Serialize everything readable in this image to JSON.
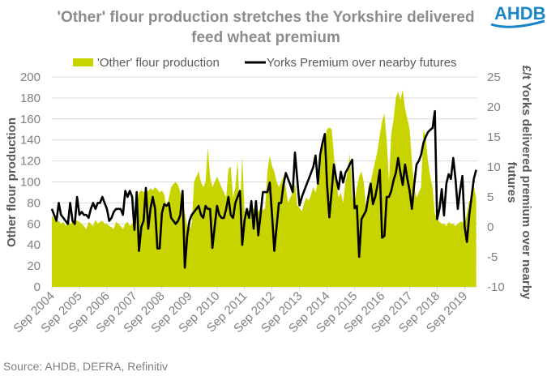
{
  "logo": "AHDB",
  "colors": {
    "flour": "#c8d400",
    "premium": "#000000",
    "grid": "#d9d9d9",
    "logo": "#1a86c8"
  },
  "chart_data": {
    "type": "area+line",
    "title_line1": "'Other' flour production stretches the Yorkshire delivered",
    "title_line2": "feed wheat premium",
    "ylabel": "Other flour production",
    "y2label_line1": "£/t Yorks delivered premium over nearby",
    "y2label_line2": "futures",
    "ylim": [
      0,
      200
    ],
    "y2lim": [
      -10,
      25
    ],
    "yticks": [
      "0",
      "20",
      "40",
      "60",
      "80",
      "100",
      "120",
      "140",
      "160",
      "180",
      "200"
    ],
    "y2ticks": [
      "-10",
      "-5",
      "0",
      "5",
      "10",
      "15",
      "20",
      "25"
    ],
    "xticks": [
      "Sep 2004",
      "Sep 2005",
      "Sep 2006",
      "Sep 2007",
      "Sep 2008",
      "Sep 2009",
      "Sep 2010",
      "Sep 2011",
      "Sep 2012",
      "Sep 2013",
      "Sep 2014",
      "Sep 2015",
      "Sep 2016",
      "Sep 2017",
      "Sep 2018",
      "Sep 2019"
    ],
    "x_start": "Sep 2004",
    "x_step": "monthly",
    "legend_position": "top",
    "grid": true,
    "series": [
      {
        "name": "'Other' flour production",
        "type": "area",
        "axis": "left",
        "values": [
          68,
          65,
          62,
          63,
          60,
          62,
          58,
          63,
          60,
          62,
          64,
          63,
          62,
          60,
          58,
          55,
          62,
          60,
          58,
          64,
          60,
          62,
          63,
          60,
          60,
          58,
          57,
          55,
          62,
          60,
          58,
          55,
          60,
          62,
          58,
          60,
          72,
          80,
          90,
          92,
          90,
          93,
          91,
          94,
          92,
          95,
          93,
          90,
          92,
          88,
          75,
          85,
          95,
          98,
          100,
          97,
          90,
          80,
          70,
          58,
          55,
          60,
          100,
          105,
          110,
          100,
          95,
          100,
          133,
          105,
          95,
          100,
          105,
          100,
          95,
          90,
          85,
          112,
          115,
          85,
          95,
          120,
          70,
          125,
          72,
          70,
          70,
          72,
          75,
          70,
          72,
          75,
          73,
          75,
          110,
          125,
          115,
          110,
          100,
          95,
          100,
          105,
          95,
          80,
          85,
          90,
          100,
          78,
          75,
          72,
          80,
          85,
          82,
          88,
          95,
          90,
          100,
          115,
          140,
          142,
          150,
          152,
          150,
          125,
          100,
          85,
          90,
          80,
          100,
          110,
          127,
          85,
          80,
          95,
          105,
          110,
          100,
          75,
          95,
          100,
          110,
          120,
          130,
          145,
          158,
          165,
          140,
          100,
          145,
          160,
          180,
          186,
          178,
          188,
          170,
          160,
          150,
          120,
          95,
          85,
          90,
          95,
          150,
          142,
          120,
          105,
          95,
          70,
          65,
          62,
          60,
          60,
          58,
          62,
          60,
          60,
          58,
          60,
          62,
          62,
          60,
          70,
          82,
          80,
          96,
          85
        ]
      },
      {
        "name": "Yorks Premium over nearby futures",
        "type": "line",
        "axis": "right",
        "values": [
          3,
          2,
          1,
          4,
          2,
          1.5,
          1,
          0.5,
          4,
          1,
          0.5,
          5,
          2,
          2.5,
          2,
          2,
          1.5,
          3,
          4,
          3,
          4,
          4,
          5,
          4,
          3,
          1,
          1.5,
          2.5,
          3,
          3,
          3,
          2,
          6,
          5,
          6,
          5,
          -0.5,
          5.8,
          -4,
          0,
          1,
          6.5,
          -0.3,
          3,
          5,
          3,
          -3.6,
          -3.6,
          2.3,
          3.8,
          3.5,
          4,
          1.5,
          1,
          0.5,
          1,
          2,
          6,
          -6.8,
          -1.5,
          1,
          2,
          2.5,
          3,
          3.5,
          2,
          1.5,
          3.5,
          3,
          3,
          -3.5,
          0,
          3.5,
          2,
          1.5,
          1.5,
          3,
          5,
          2,
          1.5,
          4,
          5,
          6,
          -3,
          1,
          3,
          1.5,
          4.3,
          -0.3,
          4.3,
          -1.4,
          2,
          5.8,
          5.8,
          5.8,
          7.4,
          2,
          -4,
          0,
          4,
          4,
          7,
          9,
          8,
          7,
          5.8,
          12.4,
          8,
          3.6,
          5,
          6,
          7,
          8,
          9,
          10,
          11.9,
          7.2,
          12,
          14,
          15.5,
          7,
          1.6,
          6,
          10.4,
          8,
          6.3,
          9.2,
          7.4,
          9,
          9.7,
          10.5,
          11.2,
          3.1,
          3.5,
          -5,
          1.3,
          2,
          2.7,
          5,
          7.2,
          3.8,
          5,
          7,
          9.5,
          -1.8,
          -1.5,
          5,
          5,
          6,
          7.8,
          9,
          11.5,
          9,
          7,
          10.4,
          8,
          6,
          3,
          7,
          10.4,
          11,
          12,
          14,
          15,
          15.8,
          16.2,
          16.5,
          19.3,
          1.3,
          3,
          6.3,
          1.9,
          7.2,
          8.8,
          8,
          11.5,
          8,
          3,
          6,
          8.5,
          0,
          -2.5,
          2,
          5,
          8,
          9.5
        ]
      }
    ],
    "source": "Source: AHDB, DEFRA, Refinitiv"
  }
}
